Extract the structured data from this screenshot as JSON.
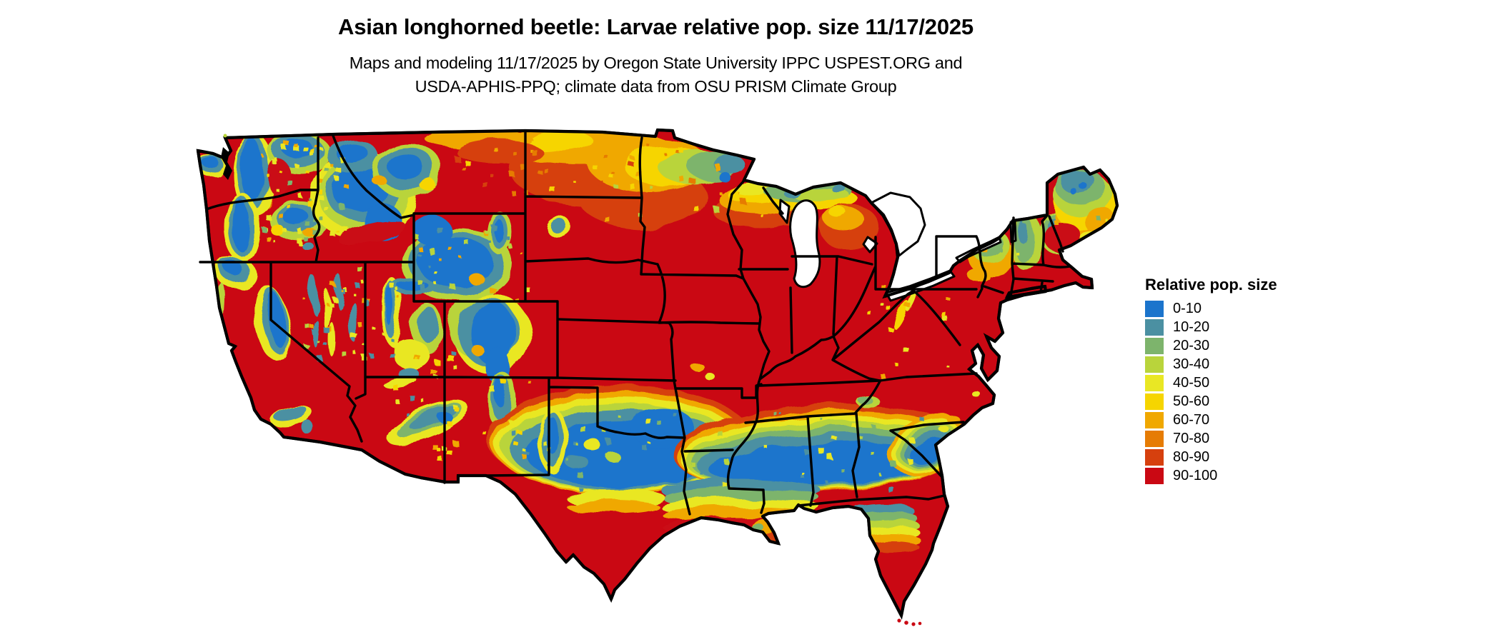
{
  "header": {
    "title": "Asian longhorned beetle: Larvae relative pop. size 11/17/2025",
    "subtitle_line1": "Maps and modeling 11/17/2025 by Oregon State University IPPC USPEST.ORG and",
    "subtitle_line2": "USDA-APHIS-PPQ; climate data from OSU PRISM Climate Group"
  },
  "legend": {
    "title": "Relative pop. size",
    "items": [
      {
        "label": "0-10",
        "color": "#1b74cc"
      },
      {
        "label": "10-20",
        "color": "#4b90a2"
      },
      {
        "label": "20-30",
        "color": "#7db46c"
      },
      {
        "label": "30-40",
        "color": "#b9d43b"
      },
      {
        "label": "40-50",
        "color": "#e9e724"
      },
      {
        "label": "50-60",
        "color": "#f6d500"
      },
      {
        "label": "60-70",
        "color": "#f0a800"
      },
      {
        "label": "70-80",
        "color": "#e67c04"
      },
      {
        "label": "80-90",
        "color": "#d6400e"
      },
      {
        "label": "90-100",
        "color": "#ca0813"
      }
    ]
  },
  "map": {
    "kind": "choropleth-raster",
    "area": "Contiguous United States with state boundaries",
    "base_level": "90-100",
    "background": "#ffffff",
    "regions": [
      {
        "name": "pacific-northwest-cascades",
        "level": "0-10"
      },
      {
        "name": "olympic-peninsula",
        "level": "0-10"
      },
      {
        "name": "northern-rockies-idaho-montana",
        "level": "0-10"
      },
      {
        "name": "blue-mountains-oregon",
        "level": "10-20"
      },
      {
        "name": "sierra-nevada",
        "level": "0-10"
      },
      {
        "name": "great-basin-ranges",
        "level": "10-20"
      },
      {
        "name": "wasatch-uinta-utah",
        "level": "0-10"
      },
      {
        "name": "yellowstone-wyoming-ranges",
        "level": "0-10"
      },
      {
        "name": "colorado-rockies",
        "level": "0-10"
      },
      {
        "name": "northern-new-mexico-mountains",
        "level": "10-20"
      },
      {
        "name": "mogollon-rim-arizona",
        "level": "10-20"
      },
      {
        "name": "columbia-basin-valleys",
        "level": "90-100"
      },
      {
        "name": "great-plains",
        "level": "90-100"
      },
      {
        "name": "northern-north-dakota-border",
        "level": "60-70"
      },
      {
        "name": "northern-minnesota",
        "level": "30-40"
      },
      {
        "name": "lake-superior-shore",
        "level": "10-20"
      },
      {
        "name": "northern-wisconsin",
        "level": "60-70"
      },
      {
        "name": "upper-peninsula-michigan",
        "level": "20-30"
      },
      {
        "name": "northern-lower-michigan",
        "level": "80-90"
      },
      {
        "name": "central-texas-gulf-belt",
        "level": "0-10"
      },
      {
        "name": "deep-south-belt-la-ms-al-ga",
        "level": "0-10"
      },
      {
        "name": "south-carolina-coastal-plain",
        "level": "0-10"
      },
      {
        "name": "south-texas",
        "level": "90-100"
      },
      {
        "name": "gulf-coast-fringe",
        "level": "60-70"
      },
      {
        "name": "north-florida-transition",
        "level": "20-30"
      },
      {
        "name": "florida-peninsula",
        "level": "90-100"
      },
      {
        "name": "adirondacks-new-york",
        "level": "20-30"
      },
      {
        "name": "green-white-mountains-vt-nh",
        "level": "20-30"
      },
      {
        "name": "northern-maine",
        "level": "10-20"
      },
      {
        "name": "eastern-maine-coast",
        "level": "60-70"
      },
      {
        "name": "appalachian-ridges",
        "level": "50-60"
      },
      {
        "name": "eastern-lowlands-midwest-southeast",
        "level": "90-100"
      }
    ]
  }
}
